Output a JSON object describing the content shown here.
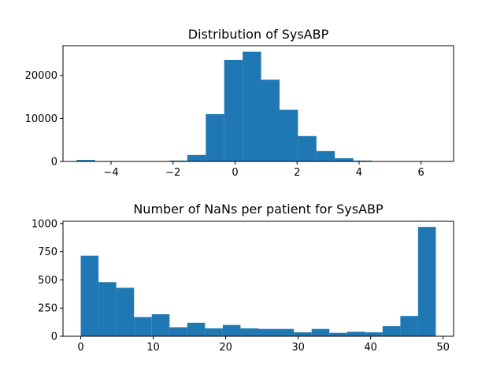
{
  "colors": {
    "bar": "#1f77b4"
  },
  "chart_data": [
    {
      "type": "bar",
      "title": "Distribution of SysABP",
      "xlabel": "",
      "ylabel": "",
      "xlim": [
        -5.55,
        7.05
      ],
      "ylim": [
        0,
        26900
      ],
      "bin_edges": [
        -5.11,
        -4.515,
        -3.92,
        -3.325,
        -2.73,
        -2.135,
        -1.54,
        -0.945,
        -0.35,
        0.245,
        0.84,
        1.435,
        2.03,
        2.625,
        3.22,
        3.815,
        4.41,
        5.005,
        5.6,
        6.195,
        6.79
      ],
      "values": [
        350,
        0,
        0,
        0,
        0,
        200,
        1500,
        11000,
        23600,
        25500,
        19000,
        12000,
        5900,
        2400,
        750,
        200,
        80,
        30,
        20,
        10
      ],
      "xticks": [
        -4,
        -2,
        0,
        2,
        4,
        6
      ],
      "xtick_labels": [
        "−4",
        "−2",
        "0",
        "2",
        "4",
        "6"
      ],
      "yticks": [
        0,
        10000,
        20000
      ],
      "ytick_labels": [
        "0",
        "10000",
        "20000"
      ]
    },
    {
      "type": "bar",
      "title": "Number of NaNs per patient for SysABP",
      "xlabel": "",
      "ylabel": "",
      "xlim": [
        -2.45,
        51.45
      ],
      "ylim": [
        0,
        1020
      ],
      "bin_edges": [
        0,
        2.45,
        4.9,
        7.35,
        9.8,
        12.25,
        14.7,
        17.15,
        19.6,
        22.05,
        24.5,
        26.95,
        29.4,
        31.85,
        34.3,
        36.75,
        39.2,
        41.65,
        44.1,
        46.55,
        49
      ],
      "values": [
        715,
        480,
        430,
        170,
        195,
        80,
        120,
        70,
        100,
        70,
        65,
        65,
        35,
        65,
        30,
        40,
        35,
        90,
        180,
        970
      ],
      "xticks": [
        0,
        10,
        20,
        30,
        40,
        50
      ],
      "xtick_labels": [
        "0",
        "10",
        "20",
        "30",
        "40",
        "50"
      ],
      "yticks": [
        0,
        250,
        500,
        750,
        1000
      ],
      "ytick_labels": [
        "0",
        "250",
        "500",
        "750",
        "1000"
      ]
    }
  ]
}
